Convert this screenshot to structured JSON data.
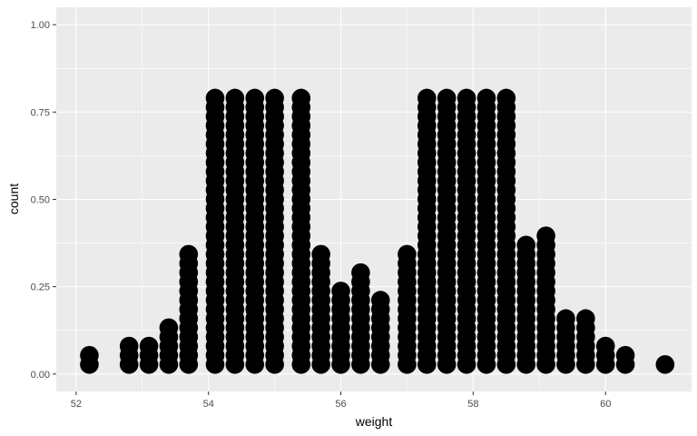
{
  "chart_data": {
    "type": "dotplot",
    "xlabel": "weight",
    "ylabel": "count",
    "xlim": [
      51.7,
      61.3
    ],
    "ylim": [
      -0.05,
      1.05
    ],
    "x_ticks": [
      52,
      54,
      56,
      58,
      60
    ],
    "y_ticks": [
      0.0,
      0.25,
      0.5,
      0.75,
      1.0
    ],
    "x_tick_labels": [
      "52",
      "54",
      "56",
      "58",
      "60"
    ],
    "y_tick_labels": [
      "0.00",
      "0.25",
      "0.50",
      "0.75",
      "1.00"
    ],
    "dot_stack_step": 0.0263,
    "columns": [
      {
        "x": 52.2,
        "count": 2
      },
      {
        "x": 52.8,
        "count": 3
      },
      {
        "x": 53.1,
        "count": 3
      },
      {
        "x": 53.4,
        "count": 5
      },
      {
        "x": 53.7,
        "count": 13
      },
      {
        "x": 54.1,
        "count": 30
      },
      {
        "x": 54.4,
        "count": 30
      },
      {
        "x": 54.7,
        "count": 30
      },
      {
        "x": 55.0,
        "count": 30
      },
      {
        "x": 55.4,
        "count": 30
      },
      {
        "x": 55.7,
        "count": 13
      },
      {
        "x": 56.0,
        "count": 9
      },
      {
        "x": 56.3,
        "count": 11
      },
      {
        "x": 56.6,
        "count": 8
      },
      {
        "x": 57.0,
        "count": 13
      },
      {
        "x": 57.3,
        "count": 30
      },
      {
        "x": 57.6,
        "count": 30
      },
      {
        "x": 57.9,
        "count": 30
      },
      {
        "x": 58.2,
        "count": 30
      },
      {
        "x": 58.5,
        "count": 30
      },
      {
        "x": 58.8,
        "count": 14
      },
      {
        "x": 59.1,
        "count": 15
      },
      {
        "x": 59.4,
        "count": 6
      },
      {
        "x": 59.7,
        "count": 6
      },
      {
        "x": 60.0,
        "count": 3
      },
      {
        "x": 60.3,
        "count": 2
      },
      {
        "x": 60.9,
        "count": 1
      }
    ],
    "grid": true,
    "dot_color": "#000000",
    "panel_color": "#ebebeb",
    "grid_color": "#ffffff"
  }
}
